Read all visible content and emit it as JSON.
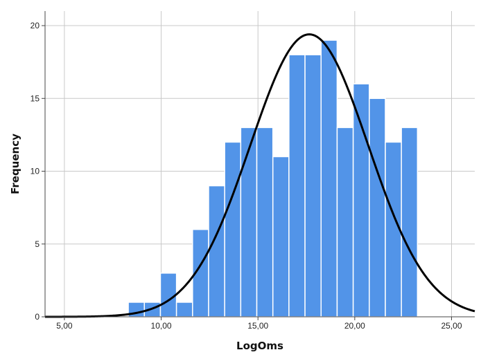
{
  "chart_data": {
    "type": "bar",
    "subtype": "histogram-with-normal-curve",
    "xlabel": "LogOms",
    "ylabel": "Frequency",
    "xlim": [
      4.0,
      26.2
    ],
    "ylim": [
      0,
      21
    ],
    "x_ticks": [
      {
        "value": 5,
        "label": "5,00"
      },
      {
        "value": 10,
        "label": "10,00"
      },
      {
        "value": 15,
        "label": "15,00"
      },
      {
        "value": 20,
        "label": "20,00"
      },
      {
        "value": 25,
        "label": "25,00"
      }
    ],
    "y_ticks": [
      {
        "value": 0,
        "label": "0"
      },
      {
        "value": 5,
        "label": "5"
      },
      {
        "value": 10,
        "label": "10"
      },
      {
        "value": 15,
        "label": "15"
      },
      {
        "value": 20,
        "label": "20"
      }
    ],
    "grid": true,
    "bin_width": 0.83,
    "bins": [
      {
        "start": 8.3,
        "value": 1
      },
      {
        "start": 9.13,
        "value": 1
      },
      {
        "start": 9.96,
        "value": 3
      },
      {
        "start": 10.79,
        "value": 1
      },
      {
        "start": 11.62,
        "value": 6
      },
      {
        "start": 12.45,
        "value": 9
      },
      {
        "start": 13.28,
        "value": 12
      },
      {
        "start": 14.11,
        "value": 13
      },
      {
        "start": 14.94,
        "value": 13
      },
      {
        "start": 15.77,
        "value": 11
      },
      {
        "start": 16.6,
        "value": 18
      },
      {
        "start": 17.43,
        "value": 18
      },
      {
        "start": 18.26,
        "value": 19
      },
      {
        "start": 19.09,
        "value": 13
      },
      {
        "start": 19.92,
        "value": 16
      },
      {
        "start": 20.75,
        "value": 15
      },
      {
        "start": 21.58,
        "value": 12
      },
      {
        "start": 22.41,
        "value": 13
      }
    ],
    "normal_curve": {
      "mean": 17.65,
      "sd": 3.05,
      "peak": 19.4
    },
    "colors": {
      "bar": "#5294e8",
      "bar_edge": "#ffffff",
      "curve": "#000000",
      "grid": "#c8c8c8",
      "axis": "#444444"
    }
  }
}
